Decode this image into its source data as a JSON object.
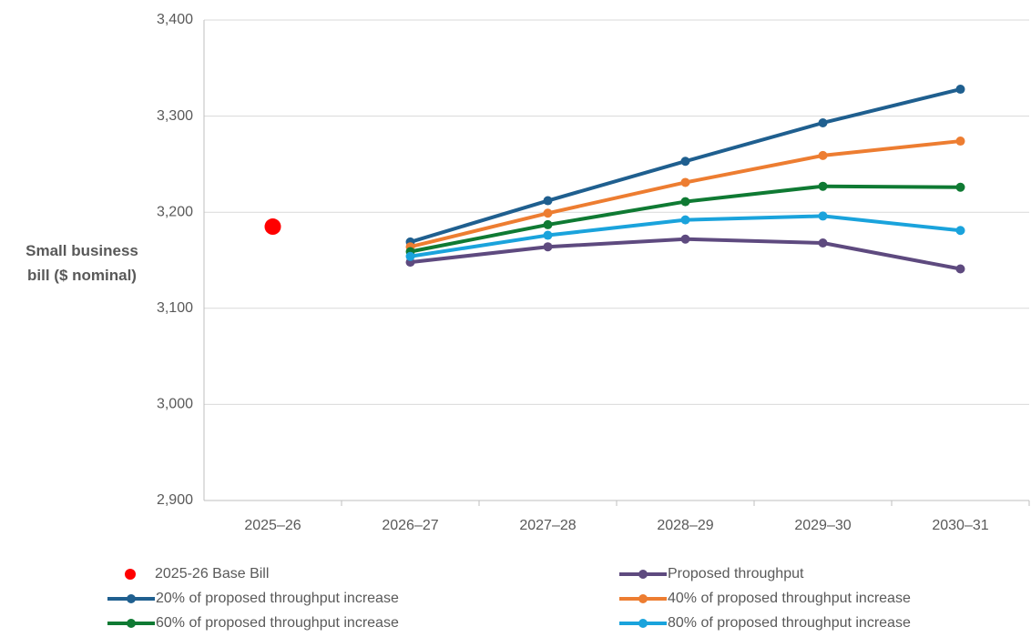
{
  "chart_data": {
    "type": "line",
    "y_label": "Small business bill ($ nominal)",
    "categories": [
      "2025–26",
      "2026–27",
      "2027–28",
      "2028–29",
      "2029–30",
      "2030–31"
    ],
    "ylim": [
      2900,
      3400
    ],
    "yticks": [
      {
        "value": 2900,
        "label": "2,900"
      },
      {
        "value": 3000,
        "label": "3,000"
      },
      {
        "value": 3100,
        "label": "3,100"
      },
      {
        "value": 3200,
        "label": "3,200"
      },
      {
        "value": 3300,
        "label": "3,300"
      },
      {
        "value": 3400,
        "label": "3,400"
      }
    ],
    "grid": true,
    "series": [
      {
        "name": "2025-26 Base Bill",
        "color": "#ff0000",
        "style": "marker",
        "values": [
          3185,
          null,
          null,
          null,
          null,
          null
        ]
      },
      {
        "name": "Proposed throughput",
        "color": "#5e4a7f",
        "values": [
          null,
          3148,
          3164,
          3172,
          3168,
          3141
        ]
      },
      {
        "name": "20% of proposed throughput increase",
        "color": "#1f5f8f",
        "values": [
          null,
          3169,
          3212,
          3253,
          3293,
          3328
        ]
      },
      {
        "name": "40% of proposed throughput increase",
        "color": "#ed7d31",
        "values": [
          null,
          3164,
          3199,
          3231,
          3259,
          3274
        ]
      },
      {
        "name": "60% of proposed throughput increase",
        "color": "#0f7a33",
        "values": [
          null,
          3159,
          3187,
          3211,
          3227,
          3226
        ]
      },
      {
        "name": "80% of proposed throughput increase",
        "color": "#1aa3dc",
        "values": [
          null,
          3154,
          3176,
          3192,
          3196,
          3181
        ]
      }
    ]
  }
}
